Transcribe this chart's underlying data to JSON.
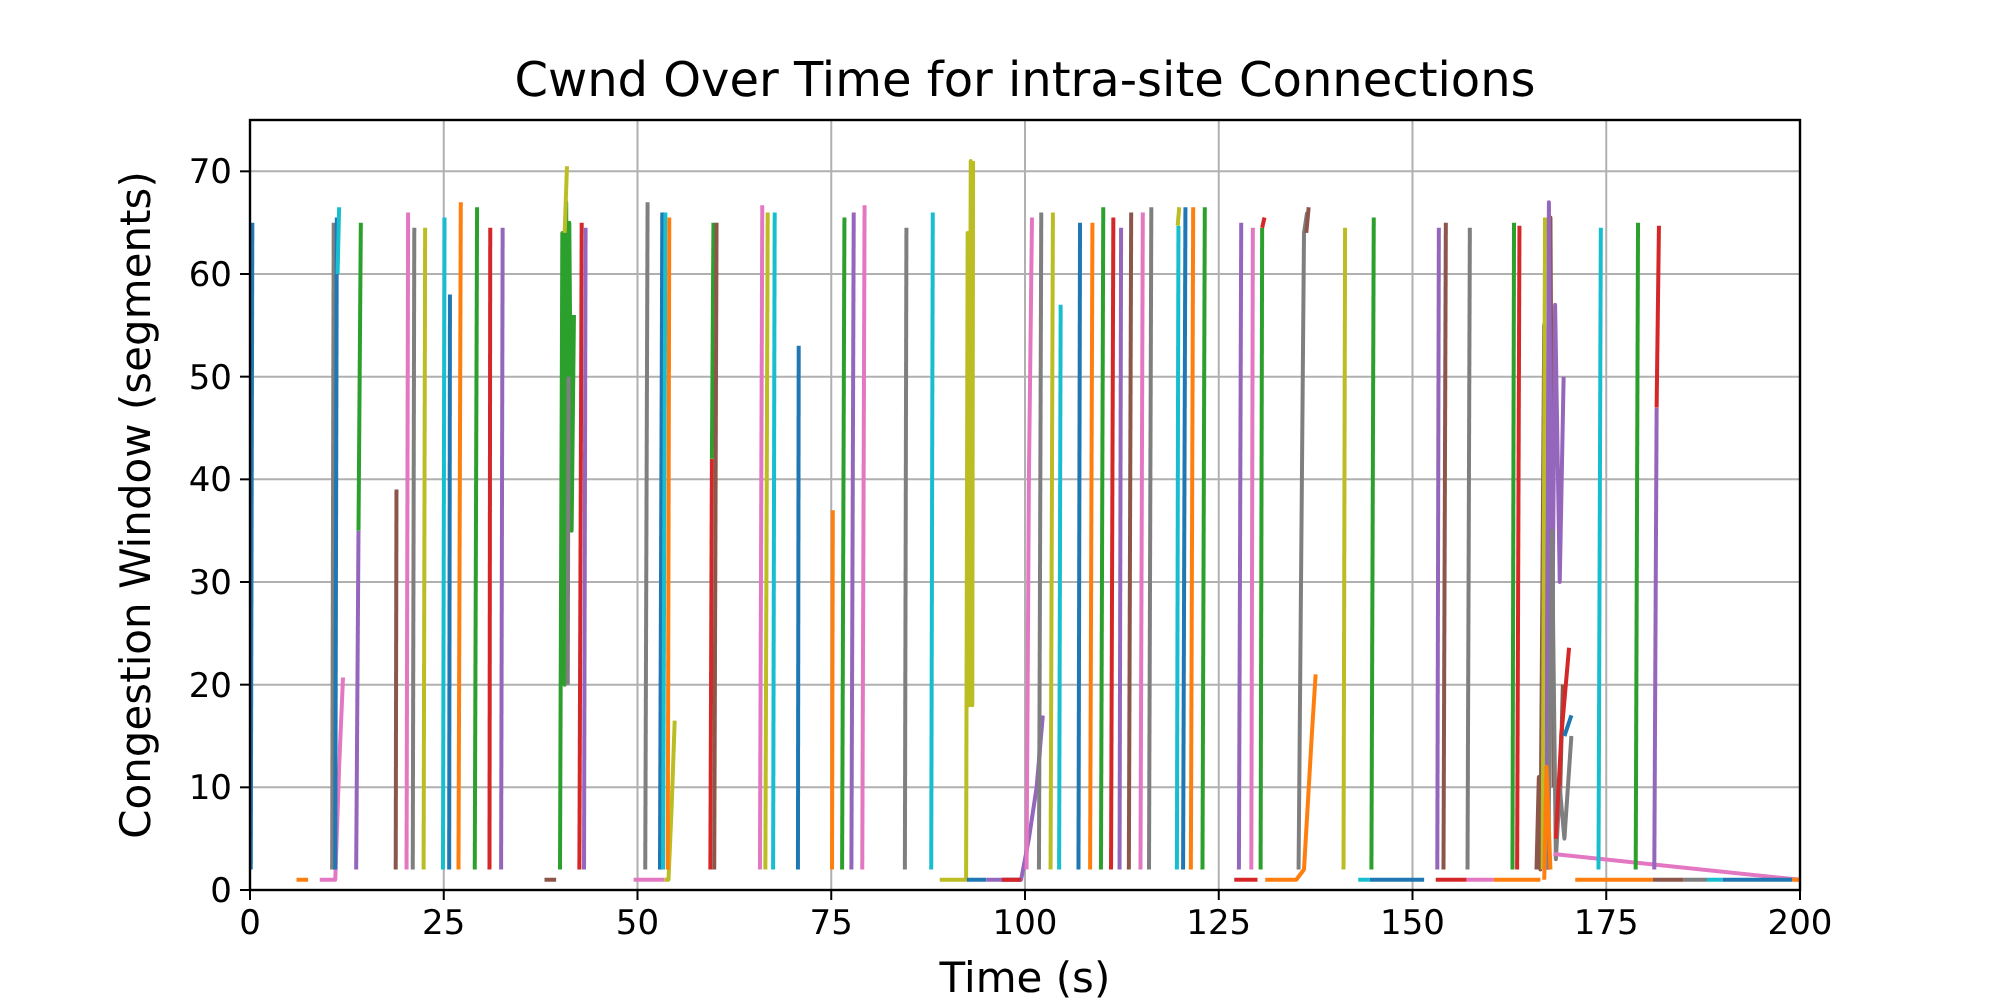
{
  "chart_data": {
    "type": "line",
    "title": "Cwnd Over Time for intra-site Connections",
    "xlabel": "Time (s)",
    "ylabel": "Congestion Window (segments)",
    "xlim": [
      0,
      200
    ],
    "ylim": [
      0,
      75
    ],
    "xticks": [
      0,
      25,
      50,
      75,
      100,
      125,
      150,
      175,
      200
    ],
    "yticks": [
      0,
      10,
      20,
      30,
      40,
      50,
      60,
      70
    ],
    "grid": true,
    "line_style": "solid",
    "marker": "none",
    "series": [
      {
        "color": "#1f77b4",
        "x": [
          0.1,
          0.3
        ],
        "values": [
          2,
          65
        ]
      },
      {
        "color": "#ff7f0e",
        "x": [
          6,
          7.5
        ],
        "values": [
          1,
          1
        ]
      },
      {
        "color": "#e377c2",
        "x": [
          9,
          11,
          11.5,
          12
        ],
        "values": [
          1,
          1,
          12,
          20.7
        ]
      },
      {
        "color": "#7f7f7f",
        "x": [
          10.6,
          10.8
        ],
        "values": [
          2,
          65
        ]
      },
      {
        "color": "#1f77b4",
        "x": [
          11,
          11.2
        ],
        "values": [
          2,
          65.5
        ]
      },
      {
        "color": "#17becf",
        "x": [
          11.3,
          11.5
        ],
        "values": [
          60,
          66.5
        ]
      },
      {
        "color": "#9467bd",
        "x": [
          13.7,
          14.0
        ],
        "values": [
          2,
          35
        ]
      },
      {
        "color": "#2ca02c",
        "x": [
          14.0,
          14.3
        ],
        "values": [
          35,
          65
        ]
      },
      {
        "color": "#8c564b",
        "x": [
          18.8,
          18.9
        ],
        "values": [
          2,
          39
        ]
      },
      {
        "color": "#e377c2",
        "x": [
          20.2,
          20.4
        ],
        "values": [
          2,
          66
        ]
      },
      {
        "color": "#7f7f7f",
        "x": [
          21.0,
          21.2
        ],
        "values": [
          2,
          64.5
        ]
      },
      {
        "color": "#bcbd22",
        "x": [
          22.4,
          22.6
        ],
        "values": [
          2,
          64.5
        ]
      },
      {
        "color": "#17becf",
        "x": [
          24.9,
          25.1
        ],
        "values": [
          2,
          65.5
        ]
      },
      {
        "color": "#1f77b4",
        "x": [
          25.7,
          25.8
        ],
        "values": [
          2,
          58
        ]
      },
      {
        "color": "#ff7f0e",
        "x": [
          26.9,
          27.2
        ],
        "values": [
          2,
          67
        ]
      },
      {
        "color": "#2ca02c",
        "x": [
          29.0,
          29.3
        ],
        "values": [
          2,
          66.5
        ]
      },
      {
        "color": "#d62728",
        "x": [
          30.9,
          31.0
        ],
        "values": [
          2,
          64.5
        ]
      },
      {
        "color": "#9467bd",
        "x": [
          32.4,
          32.6
        ],
        "values": [
          2,
          64.5
        ]
      },
      {
        "color": "#8c564b",
        "x": [
          38,
          39.5
        ],
        "values": [
          1,
          1
        ]
      },
      {
        "color": "#2ca02c",
        "x": [
          40.0,
          40.3,
          40.6,
          40.8,
          41.0,
          41.2,
          41.5,
          41.8
        ],
        "values": [
          2,
          64,
          20,
          67,
          30,
          65,
          35,
          56
        ]
      },
      {
        "color": "#bcbd22",
        "x": [
          40.6,
          40.9
        ],
        "values": [
          64,
          70.5
        ]
      },
      {
        "color": "#7f7f7f",
        "x": [
          41.0,
          41.1
        ],
        "values": [
          20,
          50
        ]
      },
      {
        "color": "#d62728",
        "x": [
          42.5,
          42.8
        ],
        "values": [
          2,
          65
        ]
      },
      {
        "color": "#9467bd",
        "x": [
          43.1,
          43.3
        ],
        "values": [
          2,
          64.5
        ]
      },
      {
        "color": "#7f7f7f",
        "x": [
          51.0,
          51.3
        ],
        "values": [
          2,
          67
        ]
      },
      {
        "color": "#e377c2",
        "x": [
          49.5,
          53.5
        ],
        "values": [
          1,
          1
        ]
      },
      {
        "color": "#1f77b4",
        "x": [
          52.9,
          53.2
        ],
        "values": [
          2,
          66
        ]
      },
      {
        "color": "#17becf",
        "x": [
          53.3,
          53.6
        ],
        "values": [
          2,
          66
        ]
      },
      {
        "color": "#bcbd22",
        "x": [
          53.5,
          54,
          54.4,
          54.8
        ],
        "values": [
          1,
          1,
          8,
          16.5
        ]
      },
      {
        "color": "#ff7f0e",
        "x": [
          53.9,
          54.1
        ],
        "values": [
          2,
          65.5
        ]
      },
      {
        "color": "#d62728",
        "x": [
          59.4,
          59.6
        ],
        "values": [
          2,
          42
        ]
      },
      {
        "color": "#2ca02c",
        "x": [
          59.6,
          59.8
        ],
        "values": [
          42,
          65
        ]
      },
      {
        "color": "#8c564b",
        "x": [
          59.9,
          60.2
        ],
        "values": [
          2,
          65
        ]
      },
      {
        "color": "#e377c2",
        "x": [
          65.8,
          66.1
        ],
        "values": [
          2,
          66.7
        ]
      },
      {
        "color": "#bcbd22",
        "x": [
          66.5,
          66.8
        ],
        "values": [
          2,
          66
        ]
      },
      {
        "color": "#17becf",
        "x": [
          67.5,
          67.7
        ],
        "values": [
          2,
          66
        ]
      },
      {
        "color": "#1f77b4",
        "x": [
          70.7,
          70.8
        ],
        "values": [
          2,
          53
        ]
      },
      {
        "color": "#ff7f0e",
        "x": [
          75.1,
          75.2
        ],
        "values": [
          2,
          37
        ]
      },
      {
        "color": "#2ca02c",
        "x": [
          76.4,
          76.7
        ],
        "values": [
          2,
          65.5
        ]
      },
      {
        "color": "#9467bd",
        "x": [
          77.6,
          77.9
        ],
        "values": [
          2,
          66
        ]
      },
      {
        "color": "#e377c2",
        "x": [
          79.0,
          79.3
        ],
        "values": [
          2,
          66.7
        ]
      },
      {
        "color": "#7f7f7f",
        "x": [
          84.5,
          84.7
        ],
        "values": [
          2,
          64.5
        ]
      },
      {
        "color": "#17becf",
        "x": [
          87.9,
          88.1
        ],
        "values": [
          2,
          66
        ]
      },
      {
        "color": "#bcbd22",
        "x": [
          89,
          92.4,
          92.6,
          92.8,
          93.0,
          93.2,
          93.3
        ],
        "values": [
          1,
          1,
          64,
          18,
          71,
          18,
          71
        ]
      },
      {
        "color": "#1f77b4",
        "x": [
          92.5,
          95
        ],
        "values": [
          1,
          1
        ]
      },
      {
        "color": "#9467bd",
        "x": [
          95,
          99.5,
          100.5,
          101.5,
          102.3
        ],
        "values": [
          1,
          1,
          5,
          10,
          17
        ]
      },
      {
        "color": "#d62728",
        "x": [
          97,
          99.5
        ],
        "values": [
          1,
          1
        ]
      },
      {
        "color": "#e377c2",
        "x": [
          100.2,
          100.5,
          100.9
        ],
        "values": [
          2,
          40,
          65.5
        ]
      },
      {
        "color": "#7f7f7f",
        "x": [
          101.8,
          102.1
        ],
        "values": [
          2,
          66
        ]
      },
      {
        "color": "#bcbd22",
        "x": [
          103.3,
          103.6
        ],
        "values": [
          2,
          66
        ]
      },
      {
        "color": "#17becf",
        "x": [
          104.4,
          104.6
        ],
        "values": [
          2,
          57
        ]
      },
      {
        "color": "#1f77b4",
        "x": [
          106.9,
          107.1
        ],
        "values": [
          2,
          65
        ]
      },
      {
        "color": "#ff7f0e",
        "x": [
          108.4,
          108.7
        ],
        "values": [
          2,
          65
        ]
      },
      {
        "color": "#2ca02c",
        "x": [
          109.8,
          110.1
        ],
        "values": [
          2,
          66.5
        ]
      },
      {
        "color": "#d62728",
        "x": [
          111.1,
          111.4
        ],
        "values": [
          2,
          65.5
        ]
      },
      {
        "color": "#9467bd",
        "x": [
          112.2,
          112.4
        ],
        "values": [
          2,
          64.5
        ]
      },
      {
        "color": "#8c564b",
        "x": [
          113.4,
          113.7
        ],
        "values": [
          2,
          66
        ]
      },
      {
        "color": "#e377c2",
        "x": [
          114.9,
          115.2
        ],
        "values": [
          2,
          66
        ]
      },
      {
        "color": "#7f7f7f",
        "x": [
          116.0,
          116.3
        ],
        "values": [
          2,
          66.5
        ]
      },
      {
        "color": "#17becf",
        "x": [
          119.6,
          119.8
        ],
        "values": [
          2,
          64.7
        ]
      },
      {
        "color": "#bcbd22",
        "x": [
          119.7,
          119.9
        ],
        "values": [
          64.7,
          66.5
        ]
      },
      {
        "color": "#1f77b4",
        "x": [
          120.4,
          120.7
        ],
        "values": [
          2,
          66.5
        ]
      },
      {
        "color": "#ff7f0e",
        "x": [
          121.4,
          121.7
        ],
        "values": [
          2,
          66.5
        ]
      },
      {
        "color": "#2ca02c",
        "x": [
          122.9,
          123.2
        ],
        "values": [
          2,
          66.5
        ]
      },
      {
        "color": "#d62728",
        "x": [
          127,
          130
        ],
        "values": [
          1,
          1
        ]
      },
      {
        "color": "#9467bd",
        "x": [
          127.6,
          127.9
        ],
        "values": [
          2,
          65
        ]
      },
      {
        "color": "#e377c2",
        "x": [
          129.2,
          129.4
        ],
        "values": [
          2,
          64.5
        ]
      },
      {
        "color": "#2ca02c",
        "x": [
          130.4,
          130.6
        ],
        "values": [
          2,
          64.5
        ]
      },
      {
        "color": "#d62728",
        "x": [
          130.6,
          130.9
        ],
        "values": [
          64.5,
          65.5
        ]
      },
      {
        "color": "#ff7f0e",
        "x": [
          131,
          135,
          136,
          137,
          137.5
        ],
        "values": [
          1,
          1,
          2,
          15,
          21
        ]
      },
      {
        "color": "#7f7f7f",
        "x": [
          135.3,
          136.0,
          136.4
        ],
        "values": [
          2,
          64,
          66
        ]
      },
      {
        "color": "#8c564b",
        "x": [
          136.3,
          136.6
        ],
        "values": [
          64,
          66.5
        ]
      },
      {
        "color": "#bcbd22",
        "x": [
          141.1,
          141.3
        ],
        "values": [
          2,
          64.5
        ]
      },
      {
        "color": "#17becf",
        "x": [
          143,
          144.5
        ],
        "values": [
          1,
          1
        ]
      },
      {
        "color": "#1f77b4",
        "x": [
          144.5,
          151.5
        ],
        "values": [
          1,
          1
        ]
      },
      {
        "color": "#2ca02c",
        "x": [
          144.7,
          145.0
        ],
        "values": [
          2,
          65.5
        ]
      },
      {
        "color": "#d62728",
        "x": [
          153,
          157
        ],
        "values": [
          1,
          1
        ]
      },
      {
        "color": "#9467bd",
        "x": [
          153.2,
          153.4
        ],
        "values": [
          2,
          64.5
        ]
      },
      {
        "color": "#8c564b",
        "x": [
          154.0,
          154.3
        ],
        "values": [
          2,
          65
        ]
      },
      {
        "color": "#e377c2",
        "x": [
          157,
          160.5
        ],
        "values": [
          1,
          1
        ]
      },
      {
        "color": "#7f7f7f",
        "x": [
          157.1,
          157.4
        ],
        "values": [
          2,
          64.5
        ]
      },
      {
        "color": "#ff7f0e",
        "x": [
          160.5,
          166.5
        ],
        "values": [
          1,
          1
        ]
      },
      {
        "color": "#2ca02c",
        "x": [
          162.9,
          163.1
        ],
        "values": [
          2,
          65
        ]
      },
      {
        "color": "#d62728",
        "x": [
          163.5,
          163.8
        ],
        "values": [
          2,
          64.7
        ]
      },
      {
        "color": "#8c564b",
        "x": [
          166,
          166.3,
          166.5,
          167,
          167.4,
          167.8,
          168.2,
          168.6,
          169.0,
          169.4
        ],
        "values": [
          2,
          11,
          2,
          55,
          5,
          65.5,
          10,
          null,
          8,
          20
        ]
      },
      {
        "color": "#bcbd22",
        "x": [
          166.8,
          167.1
        ],
        "values": [
          2,
          65.5
        ]
      },
      {
        "color": "#9467bd",
        "x": [
          167.3,
          167.6,
          168.0,
          168.4,
          169.0,
          169.5
        ],
        "values": [
          2,
          67,
          20,
          57,
          30,
          50
        ]
      },
      {
        "color": "#7f7f7f",
        "x": [
          167.5,
          168.0,
          168.5,
          169.0,
          169.6,
          170.5
        ],
        "values": [
          2,
          35,
          3,
          10,
          5,
          15
        ]
      },
      {
        "color": "#d62728",
        "x": [
          168.5,
          169.2,
          170.2
        ],
        "values": [
          5,
          15,
          23.6
        ]
      },
      {
        "color": "#ff7f0e",
        "x": [
          167.0,
          167.3,
          167.8
        ],
        "values": [
          1,
          12,
          2
        ]
      },
      {
        "color": "#e377c2",
        "x": [
          168.2,
          200
        ],
        "values": [
          3.5,
          1
        ]
      },
      {
        "color": "#1f77b4",
        "x": [
          169.6,
          170.5
        ],
        "values": [
          15,
          17
        ]
      },
      {
        "color": "#17becf",
        "x": [
          174.0,
          174.3
        ],
        "values": [
          2,
          64.5
        ]
      },
      {
        "color": "#ff7f0e",
        "x": [
          171,
          181
        ],
        "values": [
          1,
          1
        ]
      },
      {
        "color": "#2ca02c",
        "x": [
          178.8,
          179.1
        ],
        "values": [
          2,
          65
        ]
      },
      {
        "color": "#9467bd",
        "x": [
          181.2,
          181.5
        ],
        "values": [
          2,
          47
        ]
      },
      {
        "color": "#d62728",
        "x": [
          181.5,
          181.8
        ],
        "values": [
          47,
          64.7
        ]
      },
      {
        "color": "#8c564b",
        "x": [
          181,
          185
        ],
        "values": [
          1,
          1
        ]
      },
      {
        "color": "#7f7f7f",
        "x": [
          185,
          188
        ],
        "values": [
          1,
          1
        ]
      },
      {
        "color": "#17becf",
        "x": [
          188,
          190
        ],
        "values": [
          1,
          1
        ]
      },
      {
        "color": "#1f77b4",
        "x": [
          190,
          199
        ],
        "values": [
          1,
          1
        ]
      },
      {
        "color": "#ff7f0e",
        "x": [
          199,
          200
        ],
        "values": [
          1,
          1
        ]
      }
    ]
  }
}
